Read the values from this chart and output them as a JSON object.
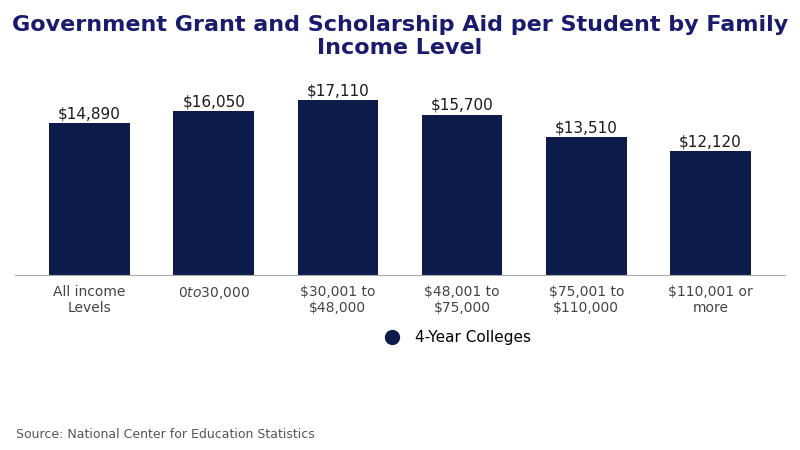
{
  "title": "Government Grant and Scholarship Aid per Student by Family\nIncome Level",
  "categories": [
    "All income\nLevels",
    "$0 to $30,000",
    "$30,001 to\n$48,000",
    "$48,001 to\n$75,000",
    "$75,001 to\n$110,000",
    "$110,001 or\nmore"
  ],
  "values": [
    14890,
    16050,
    17110,
    15700,
    13510,
    12120
  ],
  "labels": [
    "$14,890",
    "$16,050",
    "$17,110",
    "$15,700",
    "$13,510",
    "$12,120"
  ],
  "bar_color": "#0d1b4b",
  "background_color": "#ffffff",
  "title_color": "#1a1a6e",
  "label_color": "#1a1a1a",
  "tick_label_color": "#444444",
  "source_text": "Source: National Center for Education Statistics",
  "legend_label": "4-Year Colleges",
  "ylim": [
    0,
    20000
  ],
  "title_fontsize": 16,
  "bar_label_fontsize": 11,
  "tick_label_fontsize": 10,
  "source_fontsize": 9,
  "legend_fontsize": 11,
  "bar_width": 0.65
}
